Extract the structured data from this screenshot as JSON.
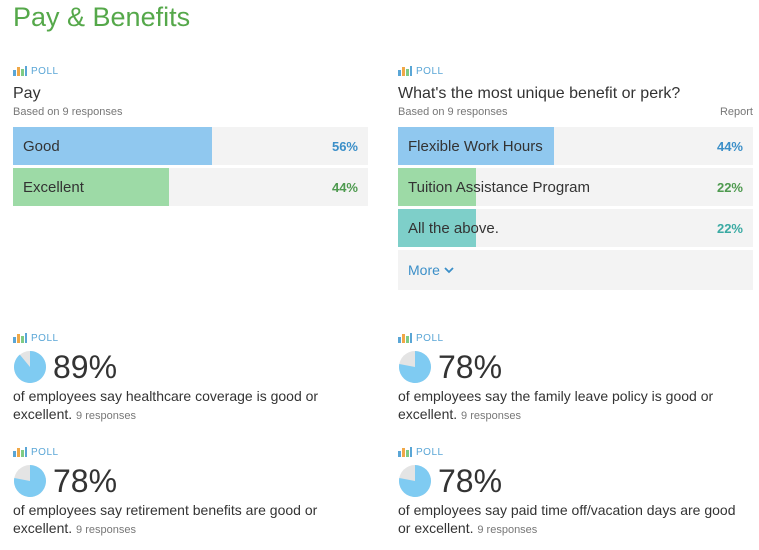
{
  "page": {
    "title": "Pay & Benefits"
  },
  "colors": {
    "title": "#55a84a",
    "poll_tag": "#5aa6d6",
    "blue_bar": "#90c8ef",
    "green_bar": "#9ddaa6",
    "teal_bar": "#7ecfc9",
    "blue_text": "#3b8fc8",
    "green_text": "#4e9a4f",
    "teal_text": "#3aaaa3",
    "pie_fill": "#7fcbf2",
    "pie_bg": "#e4e4e4"
  },
  "poll_tag_label": "POLL",
  "pay_poll": {
    "question": "Pay",
    "responses": "Based on 9 responses",
    "options": [
      {
        "label": "Good",
        "percent": "56%",
        "value": 56,
        "color": "blue"
      },
      {
        "label": "Excellent",
        "percent": "44%",
        "value": 44,
        "color": "green"
      }
    ]
  },
  "perk_poll": {
    "question": "What's the most unique benefit or perk?",
    "responses": "Based on 9 responses",
    "report": "Report",
    "options": [
      {
        "label": "Flexible Work Hours",
        "percent": "44%",
        "value": 44,
        "color": "blue"
      },
      {
        "label": "Tuition Assistance Program",
        "percent": "22%",
        "value": 22,
        "color": "green"
      },
      {
        "label": "All the above.",
        "percent": "22%",
        "value": 22,
        "color": "teal"
      }
    ],
    "more": "More"
  },
  "stats": [
    {
      "percent": "89%",
      "value": 89,
      "text": "of employees say healthcare coverage is good or excellent.",
      "responses": "9 responses"
    },
    {
      "percent": "78%",
      "value": 78,
      "text": "of employees say the family leave policy is good or excellent.",
      "responses": "9 responses"
    },
    {
      "percent": "78%",
      "value": 78,
      "text": "of employees say retirement benefits are good or excellent.",
      "responses": "9 responses"
    },
    {
      "percent": "78%",
      "value": 78,
      "text": "of employees say paid time off/vacation days are good or excellent.",
      "responses": "9 responses"
    }
  ]
}
